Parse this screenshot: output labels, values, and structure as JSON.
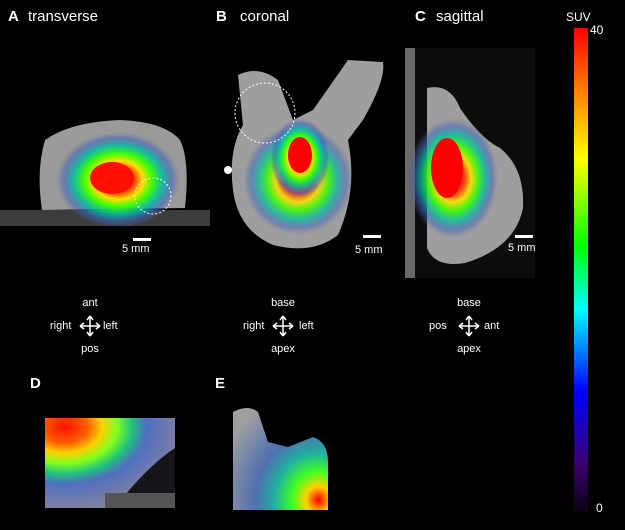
{
  "panels": {
    "A": {
      "letter": "A",
      "title": "transverse",
      "scale": "5 mm",
      "orientation": {
        "top": "ant",
        "left": "right",
        "right": "left",
        "bottom": "pos"
      }
    },
    "B": {
      "letter": "B",
      "title": "coronal",
      "scale": "5 mm",
      "orientation": {
        "top": "base",
        "left": "right",
        "right": "left",
        "bottom": "apex"
      }
    },
    "C": {
      "letter": "C",
      "title": "sagittal",
      "scale": "5 mm",
      "orientation": {
        "top": "base",
        "left": "pos",
        "right": "ant",
        "bottom": "apex"
      }
    },
    "D": {
      "letter": "D"
    },
    "E": {
      "letter": "E"
    }
  },
  "colorbar": {
    "label": "SUV",
    "max": "40",
    "min": "0",
    "stops": [
      "#ff0000",
      "#ff7f00",
      "#ffff00",
      "#00ff00",
      "#00ffff",
      "#0000ff",
      "#3a0070",
      "#0a0012"
    ]
  },
  "icons": {
    "orientation": "four-way-arrow-icon",
    "roi": "dashed-circle-icon"
  }
}
